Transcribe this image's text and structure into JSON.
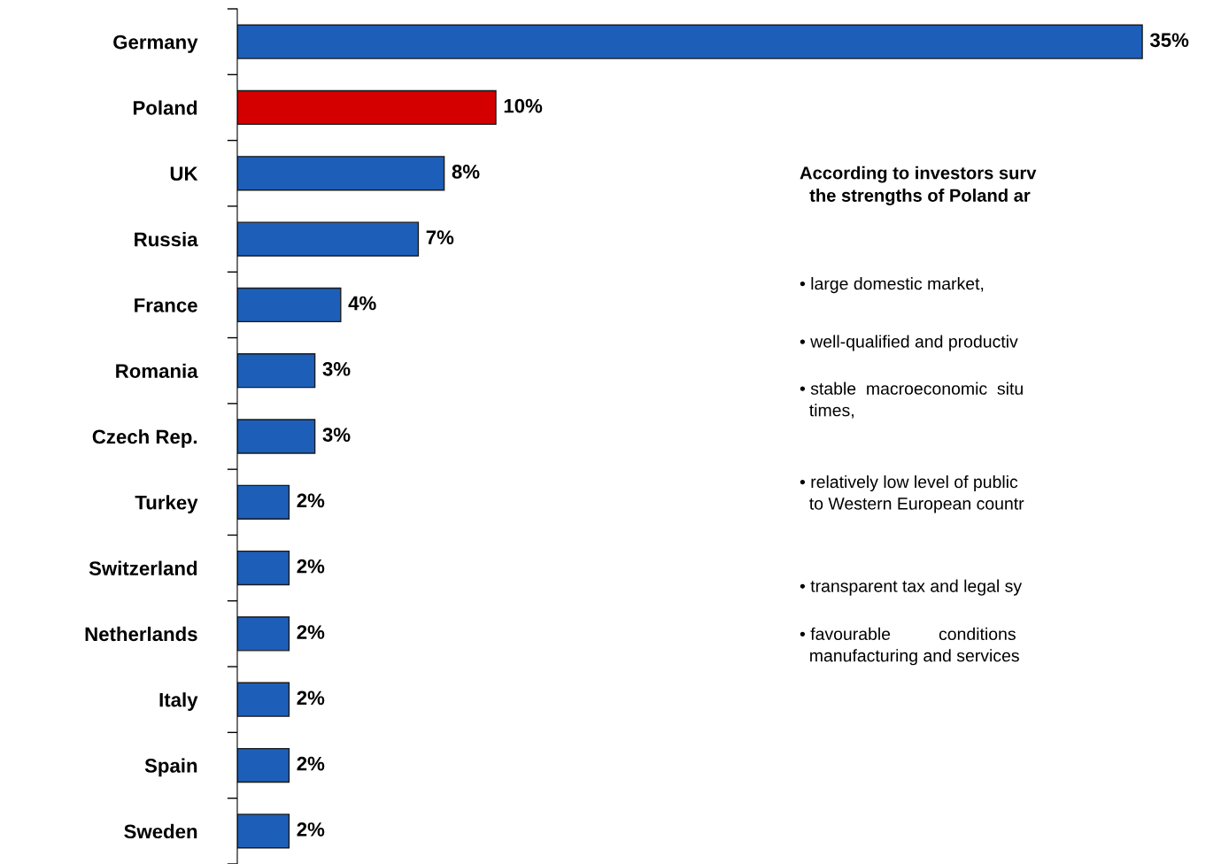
{
  "chart_data": {
    "type": "bar",
    "orientation": "horizontal",
    "categories": [
      "Germany",
      "Poland",
      "UK",
      "Russia",
      "France",
      "Romania",
      "Czech Rep.",
      "Turkey",
      "Switzerland",
      "Netherlands",
      "Italy",
      "Spain",
      "Sweden"
    ],
    "values": [
      35,
      10,
      8,
      7,
      4,
      3,
      3,
      2,
      2,
      2,
      2,
      2,
      2
    ],
    "colors": [
      "#1d5fb8",
      "#d40000",
      "#1d5fb8",
      "#1d5fb8",
      "#1d5fb8",
      "#1d5fb8",
      "#1d5fb8",
      "#1d5fb8",
      "#1d5fb8",
      "#1d5fb8",
      "#1d5fb8",
      "#1d5fb8",
      "#1d5fb8"
    ],
    "value_labels": [
      "35%",
      "10%",
      "8%",
      "7%",
      "4%",
      "3%",
      "3%",
      "2%",
      "2%",
      "2%",
      "2%",
      "2%",
      "2%"
    ],
    "annotations": [
      "According to investors surv\n  the strengths of Poland ar",
      "• large domestic market,",
      "• well-qualified and productiv",
      "• stable  macroeconomic  situ\n  times,",
      "• relatively low level of public\n  to Western European countr",
      "• transparent tax and legal sy",
      "• favourable          conditions\n  manufacturing and services"
    ],
    "grid": false,
    "legend": false,
    "tick_labels": "y"
  }
}
